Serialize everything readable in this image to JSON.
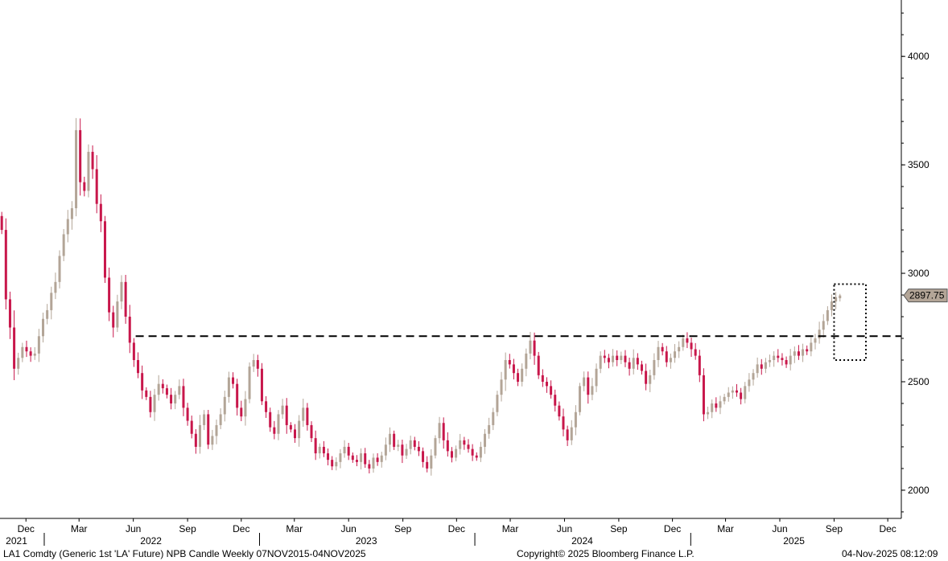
{
  "chart_data": {
    "type": "candlestick",
    "ytick_labels": [
      "2000",
      "2500",
      "3000",
      "3500",
      "4000"
    ],
    "ylim": [
      1870,
      4260
    ],
    "xlim": [
      "2021-10-18",
      "2025-12-24"
    ],
    "x_month_labels": [
      {
        "label": "Dec",
        "date": "2021-12-01"
      },
      {
        "label": "Mar",
        "date": "2022-03-01"
      },
      {
        "label": "Jun",
        "date": "2022-06-01"
      },
      {
        "label": "Sep",
        "date": "2022-09-01"
      },
      {
        "label": "Dec",
        "date": "2022-12-01"
      },
      {
        "label": "Mar",
        "date": "2023-03-01"
      },
      {
        "label": "Jun",
        "date": "2023-06-01"
      },
      {
        "label": "Sep",
        "date": "2023-09-01"
      },
      {
        "label": "Dec",
        "date": "2023-12-01"
      },
      {
        "label": "Mar",
        "date": "2024-03-01"
      },
      {
        "label": "Jun",
        "date": "2024-06-01"
      },
      {
        "label": "Sep",
        "date": "2024-09-01"
      },
      {
        "label": "Dec",
        "date": "2024-12-01"
      },
      {
        "label": "Mar",
        "date": "2025-03-01"
      },
      {
        "label": "Jun",
        "date": "2025-06-01"
      },
      {
        "label": "Sep",
        "date": "2025-09-01"
      },
      {
        "label": "Dec",
        "date": "2025-12-01"
      }
    ],
    "x_year_labels": [
      {
        "label": "2021",
        "date": "2021-11-15"
      },
      {
        "label": "2022",
        "date": "2022-07-01"
      },
      {
        "label": "2023",
        "date": "2023-07-01"
      },
      {
        "label": "2024",
        "date": "2024-07-01"
      },
      {
        "label": "2025",
        "date": "2025-06-25"
      }
    ],
    "year_boundaries": [
      "2022-01-01",
      "2023-01-01",
      "2024-01-01",
      "2025-01-01"
    ],
    "last_price_label": "2897.75",
    "last_price": 2897.75,
    "reference_line": 2710,
    "highlight_box": {
      "x": [
        "2025-09-01",
        "2025-10-25"
      ],
      "y": [
        2600,
        2950
      ]
    },
    "colors": {
      "up": "#b3a597",
      "down": "#c8174b",
      "reference": "#000000"
    },
    "grid": false,
    "closes": [
      3200,
      2880,
      2750,
      2560,
      2610,
      2660,
      2640,
      2620,
      2630,
      2710,
      2790,
      2830,
      2910,
      2960,
      3080,
      3180,
      3250,
      3300,
      3660,
      3420,
      3380,
      3560,
      3480,
      3320,
      3240,
      2980,
      2820,
      2750,
      2870,
      2960,
      2800,
      2680,
      2600,
      2540,
      2460,
      2430,
      2360,
      2440,
      2490,
      2470,
      2440,
      2400,
      2440,
      2480,
      2380,
      2320,
      2260,
      2200,
      2300,
      2350,
      2210,
      2250,
      2300,
      2350,
      2430,
      2520,
      2490,
      2380,
      2340,
      2420,
      2570,
      2600,
      2560,
      2410,
      2360,
      2290,
      2260,
      2350,
      2390,
      2300,
      2280,
      2240,
      2320,
      2380,
      2300,
      2240,
      2170,
      2200,
      2170,
      2140,
      2110,
      2130,
      2170,
      2200,
      2160,
      2140,
      2130,
      2170,
      2120,
      2100,
      2150,
      2130,
      2160,
      2210,
      2260,
      2200,
      2210,
      2160,
      2190,
      2230,
      2200,
      2180,
      2130,
      2100,
      2160,
      2240,
      2310,
      2230,
      2180,
      2150,
      2190,
      2230,
      2210,
      2190,
      2160,
      2150,
      2200,
      2260,
      2300,
      2360,
      2440,
      2510,
      2600,
      2580,
      2540,
      2500,
      2560,
      2630,
      2690,
      2620,
      2530,
      2500,
      2480,
      2440,
      2390,
      2340,
      2280,
      2230,
      2290,
      2360,
      2480,
      2520,
      2440,
      2480,
      2560,
      2620,
      2610,
      2590,
      2620,
      2600,
      2620,
      2590,
      2560,
      2610,
      2580,
      2550,
      2490,
      2530,
      2600,
      2660,
      2640,
      2590,
      2610,
      2640,
      2660,
      2700,
      2680,
      2650,
      2620,
      2530,
      2350,
      2360,
      2400,
      2380,
      2410,
      2430,
      2450,
      2460,
      2450,
      2420,
      2480,
      2510,
      2540,
      2580,
      2560,
      2590,
      2600,
      2620,
      2610,
      2600,
      2580,
      2620,
      2640,
      2620,
      2650,
      2640,
      2680,
      2700,
      2740,
      2780,
      2830,
      2870,
      2890,
      2897.75
    ],
    "last_candle": {
      "open": 2885,
      "high": 2905,
      "low": 2870,
      "close": 2897.75
    }
  },
  "footer": {
    "left": "LA1 Comdty (Generic 1st 'LA' Future) NPB Candle Weekly 07NOV2015-04NOV2025",
    "middle": "Copyright© 2025 Bloomberg Finance L.P.",
    "right": "04-Nov-2025 08:12:09"
  }
}
